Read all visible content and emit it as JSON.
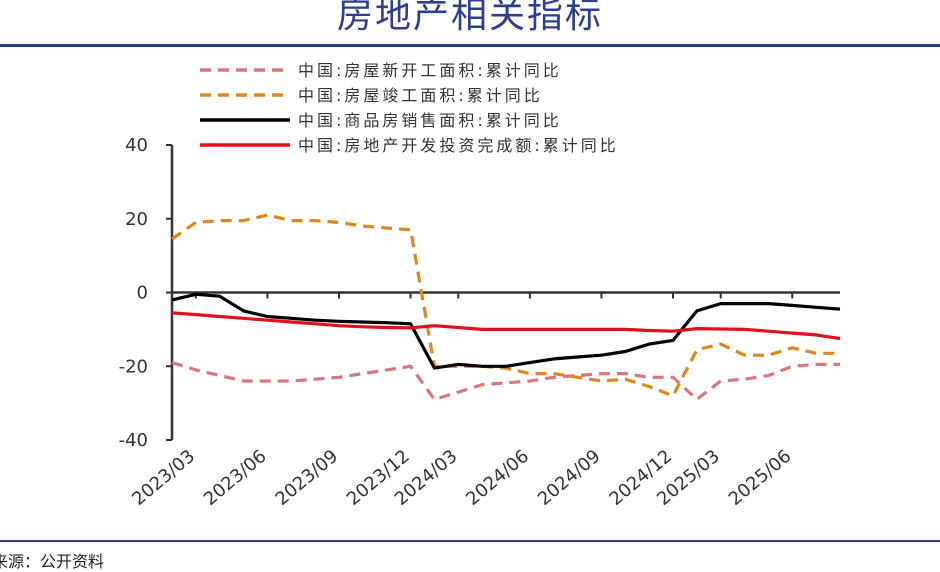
{
  "title": "房地产相关指标",
  "source": "来源：公开资料",
  "chart_data": {
    "type": "line",
    "ylim": [
      -40,
      40
    ],
    "yticks": [
      "40",
      "20",
      "0",
      "-20",
      "-40"
    ],
    "xticks": [
      "2023/03",
      "2023/06",
      "2023/09",
      "2023/12",
      "2024/03",
      "2024/06",
      "2024/09",
      "2024/12",
      "2025/03",
      "2025/06"
    ],
    "x": [
      "2023/02",
      "2023/03",
      "2023/04",
      "2023/05",
      "2023/06",
      "2023/07",
      "2023/08",
      "2023/09",
      "2023/10",
      "2023/11",
      "2023/12",
      "2024/02",
      "2024/03",
      "2024/04",
      "2024/05",
      "2024/06",
      "2024/07",
      "2024/08",
      "2024/09",
      "2024/10",
      "2024/11",
      "2024/12",
      "2025/02",
      "2025/03",
      "2025/04",
      "2025/05",
      "2025/06",
      "2025/07",
      "2025/08"
    ],
    "series": [
      {
        "name": "中国:房屋新开工面积:累计同比",
        "color": "#d9777a",
        "style": "dashed",
        "values": [
          -19,
          -21,
          -22.5,
          -24,
          -24,
          -24,
          -23.5,
          -23,
          -22,
          -21,
          -20,
          -29,
          -27,
          -25,
          -24.5,
          -24,
          -23,
          -22.5,
          -22,
          -22,
          -23,
          -23,
          -29,
          -24,
          -23.5,
          -22.5,
          -20,
          -19.5,
          -19.5
        ]
      },
      {
        "name": "中国:房屋竣工面积:累计同比",
        "color": "#e0861e",
        "style": "dashed",
        "values": [
          14.5,
          19,
          19.5,
          19.5,
          21,
          19.5,
          19.5,
          19,
          18,
          17.5,
          17,
          -20,
          -20,
          -20,
          -20.5,
          -22,
          -22,
          -23,
          -24,
          -23.5,
          -25.5,
          -28,
          -15.5,
          -14,
          -17,
          -17,
          -15,
          -16.5,
          -16.5
        ]
      },
      {
        "name": "中国:商品房销售面积:累计同比",
        "color": "#000000",
        "style": "solid",
        "values": [
          -2,
          -0.5,
          -1,
          -5,
          -6.5,
          -7,
          -7.5,
          -7.8,
          -8,
          -8.2,
          -8.5,
          -20.5,
          -19.5,
          -20,
          -20,
          -19,
          -18,
          -17.5,
          -17,
          -16,
          -14,
          -13,
          -5,
          -3,
          -3,
          -3,
          -3.5,
          -4,
          -4.5
        ]
      },
      {
        "name": "中国:房地产开发投资完成额:累计同比",
        "color": "#e3101c",
        "style": "solid",
        "values": [
          -5.5,
          -6,
          -6.5,
          -7,
          -7.5,
          -8,
          -8.5,
          -9,
          -9.3,
          -9.5,
          -9.6,
          -9,
          -9.5,
          -10,
          -10,
          -10,
          -10,
          -10,
          -10,
          -10,
          -10.3,
          -10.5,
          -9.8,
          -9.9,
          -10,
          -10.5,
          -11,
          -11.5,
          -12.5
        ]
      }
    ]
  }
}
